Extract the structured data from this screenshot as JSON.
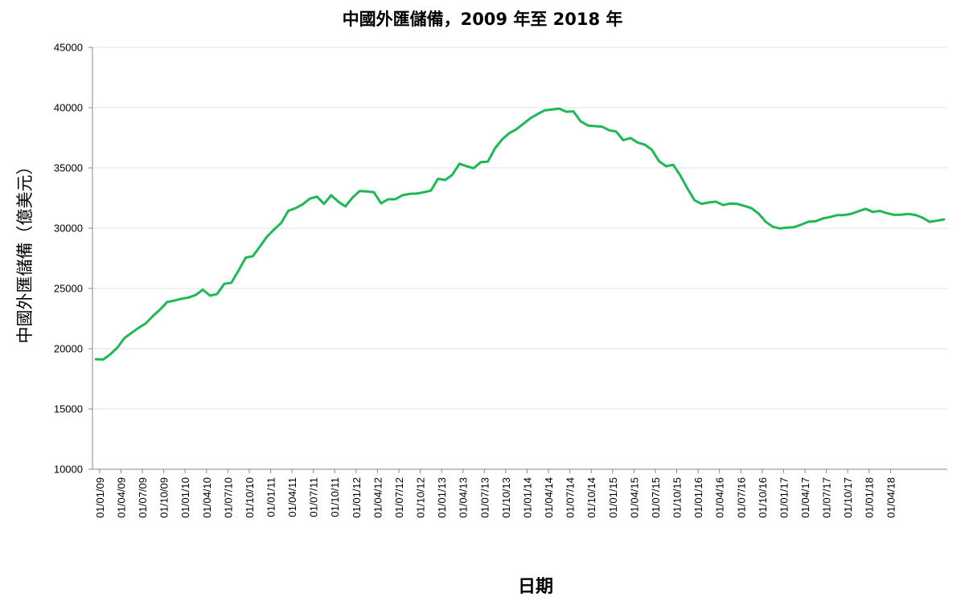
{
  "chart_data": {
    "type": "line",
    "title": "中國外匯儲備，2009 年至 2018 年",
    "xlabel": "日期",
    "ylabel": "中國外匯儲備（億美元）",
    "ylim": [
      10000,
      45000
    ],
    "y_ticks": [
      10000,
      15000,
      20000,
      25000,
      30000,
      35000,
      40000,
      45000
    ],
    "x_ticks": [
      "01/01/09",
      "01/04/09",
      "01/07/09",
      "01/10/09",
      "01/01/10",
      "01/04/10",
      "01/07/10",
      "01/10/10",
      "01/01/11",
      "01/04/11",
      "01/07/11",
      "01/10/11",
      "01/01/12",
      "01/04/12",
      "01/07/12",
      "01/10/12",
      "01/01/13",
      "01/04/13",
      "01/07/13",
      "01/10/13",
      "01/01/14",
      "01/04/14",
      "01/07/14",
      "01/10/14",
      "01/01/15",
      "01/04/15",
      "01/07/15",
      "01/10/15",
      "01/01/16",
      "01/04/16",
      "01/07/16",
      "01/10/16",
      "01/01/17",
      "01/04/17",
      "01/07/17",
      "01/10/17",
      "01/01/18",
      "01/04/18"
    ],
    "grid": true,
    "color": "#1db954",
    "series": [
      {
        "x": [
          "2009-01",
          "2009-02",
          "2009-03",
          "2009-04",
          "2009-05",
          "2009-06",
          "2009-07",
          "2009-08",
          "2009-09",
          "2009-10",
          "2009-11",
          "2009-12",
          "2010-01",
          "2010-02",
          "2010-03",
          "2010-04",
          "2010-05",
          "2010-06",
          "2010-07",
          "2010-08",
          "2010-09",
          "2010-10",
          "2010-11",
          "2010-12",
          "2011-01",
          "2011-02",
          "2011-03",
          "2011-04",
          "2011-05",
          "2011-06",
          "2011-07",
          "2011-08",
          "2011-09",
          "2011-10",
          "2011-11",
          "2011-12",
          "2012-01",
          "2012-02",
          "2012-03",
          "2012-04",
          "2012-05",
          "2012-06",
          "2012-07",
          "2012-08",
          "2012-09",
          "2012-10",
          "2012-11",
          "2012-12",
          "2013-01",
          "2013-02",
          "2013-03",
          "2013-04",
          "2013-05",
          "2013-06",
          "2013-07",
          "2013-08",
          "2013-09",
          "2013-10",
          "2013-11",
          "2013-12",
          "2014-01",
          "2014-02",
          "2014-03",
          "2014-04",
          "2014-05",
          "2014-06",
          "2014-07",
          "2014-08",
          "2014-09",
          "2014-10",
          "2014-11",
          "2014-12",
          "2015-01",
          "2015-02",
          "2015-03",
          "2015-04",
          "2015-05",
          "2015-06",
          "2015-07",
          "2015-08",
          "2015-09",
          "2015-10",
          "2015-11",
          "2015-12",
          "2016-01",
          "2016-02",
          "2016-03",
          "2016-04",
          "2016-05",
          "2016-06",
          "2016-07",
          "2016-08",
          "2016-09",
          "2016-10",
          "2016-11",
          "2016-12",
          "2017-01",
          "2017-02",
          "2017-03",
          "2017-04",
          "2017-05",
          "2017-06",
          "2017-07",
          "2017-08",
          "2017-09",
          "2017-10",
          "2017-11",
          "2017-12",
          "2018-01",
          "2018-02",
          "2018-03",
          "2018-04",
          "2018-05",
          "2018-06",
          "2018-07",
          "2018-08",
          "2018-09",
          "2018-10",
          "2018-11",
          "2018-12"
        ],
        "values": [
          19130,
          19110,
          19540,
          20090,
          20890,
          21320,
          21750,
          22110,
          22730,
          23260,
          23880,
          23990,
          24150,
          24250,
          24470,
          24900,
          24400,
          24540,
          25380,
          25480,
          26480,
          27560,
          27680,
          28470,
          29310,
          29890,
          30450,
          31450,
          31660,
          31980,
          32450,
          32620,
          32020,
          32730,
          32200,
          31810,
          32540,
          33090,
          33050,
          32980,
          32060,
          32400,
          32400,
          32730,
          32850,
          32870,
          32980,
          33120,
          34100,
          34000,
          34430,
          35350,
          35150,
          34970,
          35480,
          35530,
          36630,
          37370,
          37890,
          38210,
          38670,
          39140,
          39480,
          39790,
          39840,
          39930,
          39660,
          39690,
          38880,
          38530,
          38470,
          38430,
          38130,
          38020,
          37300,
          37480,
          37110,
          36940,
          36510,
          35570,
          35140,
          35260,
          34380,
          33300,
          32310,
          32020,
          32130,
          32200,
          31920,
          32050,
          32010,
          31850,
          31660,
          31210,
          30520,
          30110,
          29980,
          30050,
          30090,
          30300,
          30540,
          30570,
          30810,
          30920,
          31080,
          31090,
          31190,
          31400,
          31610,
          31350,
          31430,
          31250,
          31110,
          31120,
          31180,
          31100,
          30870,
          30530,
          30620,
          30730
        ]
      }
    ]
  }
}
